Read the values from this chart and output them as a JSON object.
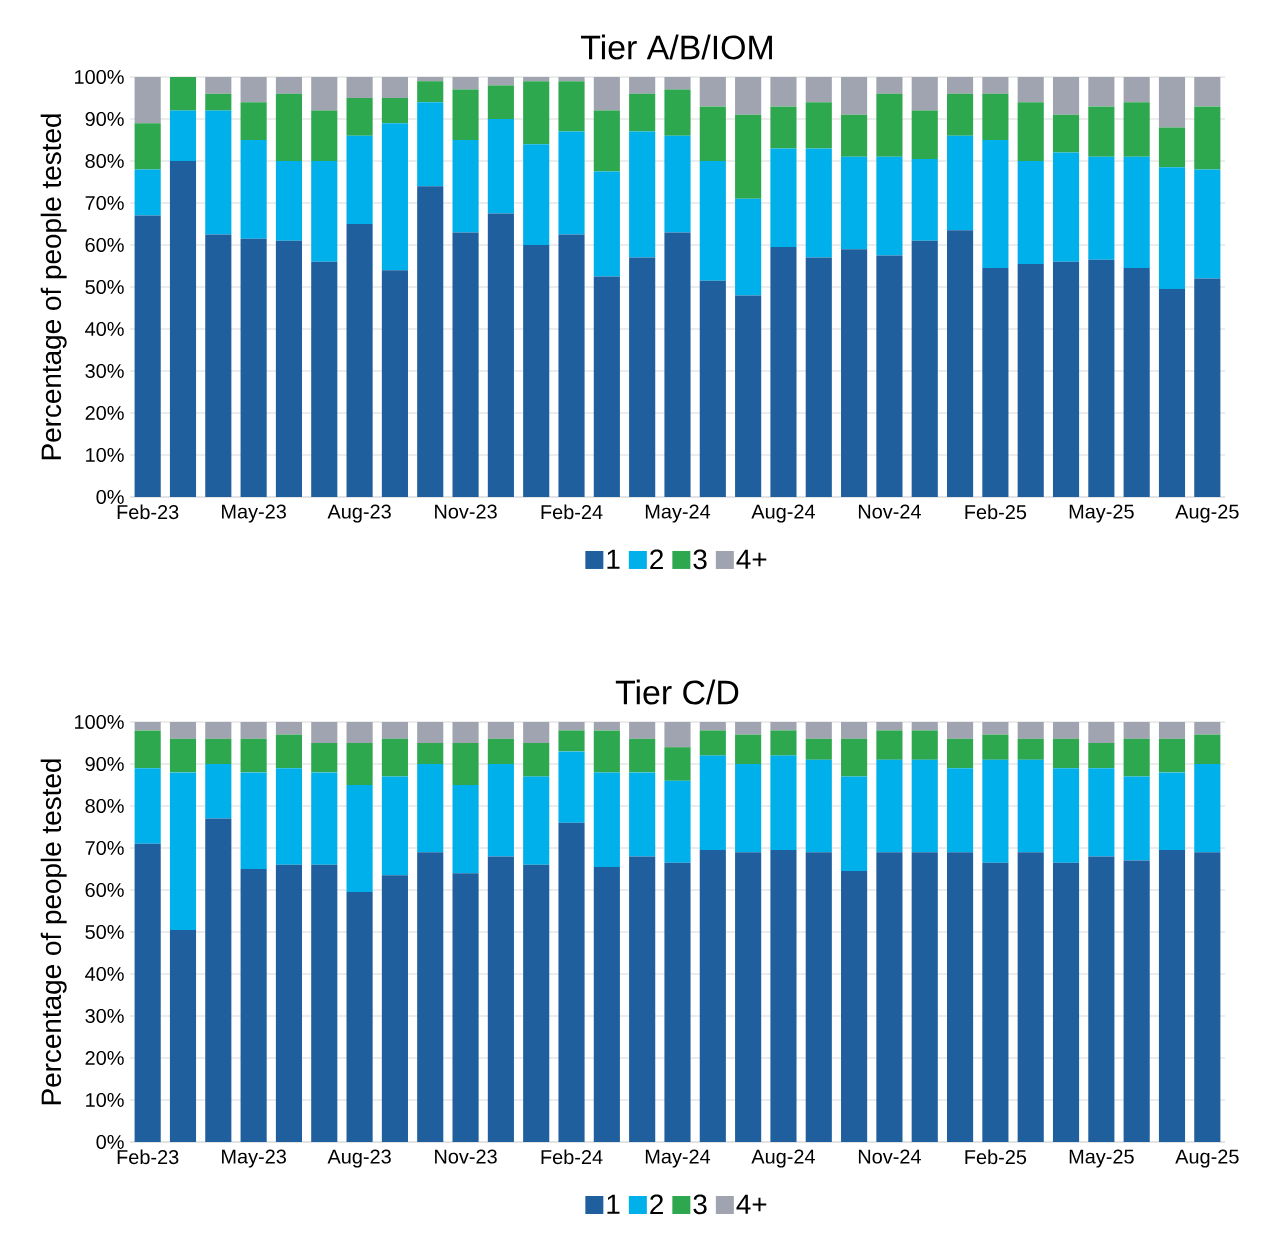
{
  "chart_data": [
    {
      "type": "bar",
      "title": "Tier A/B/IOM",
      "ylabel": "Percentage of people tested",
      "stacked": true,
      "grid": "y",
      "legend": "bottom",
      "categories": [
        "Feb-23",
        null,
        null,
        "May-23",
        null,
        null,
        "Aug-23",
        null,
        null,
        "Nov-23",
        null,
        null,
        "Feb-24",
        null,
        null,
        "May-24",
        null,
        null,
        "Aug-24",
        null,
        null,
        "Nov-24",
        null,
        null,
        "Feb-25",
        null,
        null,
        "May-25",
        null,
        null,
        "Aug-25"
      ],
      "ylim": [
        0,
        100
      ],
      "yticks": [
        {
          "value": 0,
          "label": "0%"
        },
        {
          "value": 10,
          "label": "10%"
        },
        {
          "value": 20,
          "label": "20%"
        },
        {
          "value": 30,
          "label": "30%"
        },
        {
          "value": 40,
          "label": "40%"
        },
        {
          "value": 50,
          "label": "50%"
        },
        {
          "value": 60,
          "label": "60%"
        },
        {
          "value": 70,
          "label": "70%"
        },
        {
          "value": 80,
          "label": "80%"
        },
        {
          "value": 90,
          "label": "90%"
        },
        {
          "value": 100,
          "label": "100%"
        }
      ],
      "series": [
        {
          "name": "1",
          "color": "#1f5f9e",
          "values": [
            67,
            80,
            62.5,
            61.5,
            61,
            56,
            65,
            54,
            74,
            63,
            67.5,
            60,
            62.5,
            52.5,
            57,
            63,
            51.5,
            48,
            59.5,
            57,
            59,
            57.5,
            61,
            63.5,
            54.5,
            55.5,
            56,
            56.5,
            54.5,
            49.5,
            52
          ]
        },
        {
          "name": "2",
          "color": "#00b0eb",
          "values": [
            11,
            12,
            29.5,
            23.5,
            19,
            24,
            21,
            35,
            20,
            22,
            22.5,
            24,
            24.5,
            25,
            30,
            23,
            28.5,
            23,
            23.5,
            26,
            22,
            23.5,
            19.5,
            22.5,
            30.5,
            24.5,
            26,
            24.5,
            26.5,
            29,
            26
          ]
        },
        {
          "name": "3",
          "color": "#2ea84f",
          "values": [
            11,
            8,
            4,
            9,
            16,
            12,
            9,
            6,
            5,
            12,
            8,
            15,
            12,
            14.5,
            9,
            11,
            13,
            20,
            10,
            11,
            10,
            15,
            11.5,
            10,
            11,
            14,
            9,
            12,
            13,
            9.5,
            15
          ]
        },
        {
          "name": "4+",
          "color": "#a0a3b0",
          "values": [
            11,
            0,
            4,
            6,
            4,
            8,
            5,
            5,
            1,
            3,
            2,
            1,
            1,
            8,
            4,
            3,
            7,
            9,
            7,
            6,
            9,
            4,
            8,
            4,
            4,
            6,
            9,
            7,
            6,
            12,
            7
          ]
        }
      ]
    },
    {
      "type": "bar",
      "title": "Tier C/D",
      "ylabel": "Percentage of people tested",
      "stacked": true,
      "grid": "y",
      "legend": "bottom",
      "categories": [
        "Feb-23",
        null,
        null,
        "May-23",
        null,
        null,
        "Aug-23",
        null,
        null,
        "Nov-23",
        null,
        null,
        "Feb-24",
        null,
        null,
        "May-24",
        null,
        null,
        "Aug-24",
        null,
        null,
        "Nov-24",
        null,
        null,
        "Feb-25",
        null,
        null,
        "May-25",
        null,
        null,
        "Aug-25"
      ],
      "ylim": [
        0,
        100
      ],
      "yticks": [
        {
          "value": 0,
          "label": "0%"
        },
        {
          "value": 10,
          "label": "10%"
        },
        {
          "value": 20,
          "label": "20%"
        },
        {
          "value": 30,
          "label": "30%"
        },
        {
          "value": 40,
          "label": "40%"
        },
        {
          "value": 50,
          "label": "50%"
        },
        {
          "value": 60,
          "label": "60%"
        },
        {
          "value": 70,
          "label": "70%"
        },
        {
          "value": 80,
          "label": "80%"
        },
        {
          "value": 90,
          "label": "90%"
        },
        {
          "value": 100,
          "label": "100%"
        }
      ],
      "series": [
        {
          "name": "1",
          "color": "#1f5f9e",
          "values": [
            71,
            50.5,
            77,
            65,
            66,
            66,
            59.5,
            63.5,
            69,
            64,
            68,
            66,
            76,
            65.5,
            68,
            66.5,
            69.5,
            69,
            69.5,
            69,
            64.5,
            69,
            69,
            69,
            66.5,
            69,
            66.5,
            68,
            67,
            69.5,
            69
          ]
        },
        {
          "name": "2",
          "color": "#00b0eb",
          "values": [
            18,
            37.5,
            13,
            23,
            23,
            22,
            25.5,
            23.5,
            21,
            21,
            22,
            21,
            17,
            22.5,
            20,
            19.5,
            22.5,
            21,
            22.5,
            22,
            22.5,
            22,
            22,
            20,
            24.5,
            22,
            22.5,
            21,
            20,
            18.5,
            21
          ]
        },
        {
          "name": "3",
          "color": "#2ea84f",
          "values": [
            9,
            8,
            6,
            8,
            8,
            7,
            10,
            9,
            5,
            10,
            6,
            8,
            5,
            10,
            8,
            8,
            6,
            7,
            6,
            5,
            9,
            7,
            7,
            7,
            6,
            5,
            7,
            6,
            9,
            8,
            7
          ]
        },
        {
          "name": "4+",
          "color": "#a0a3b0",
          "values": [
            2,
            4,
            4,
            4,
            3,
            5,
            5,
            4,
            5,
            5,
            4,
            5,
            2,
            2,
            4,
            6,
            2,
            3,
            2,
            4,
            4,
            2,
            2,
            4,
            3,
            4,
            4,
            5,
            4,
            4,
            3
          ]
        }
      ]
    }
  ]
}
